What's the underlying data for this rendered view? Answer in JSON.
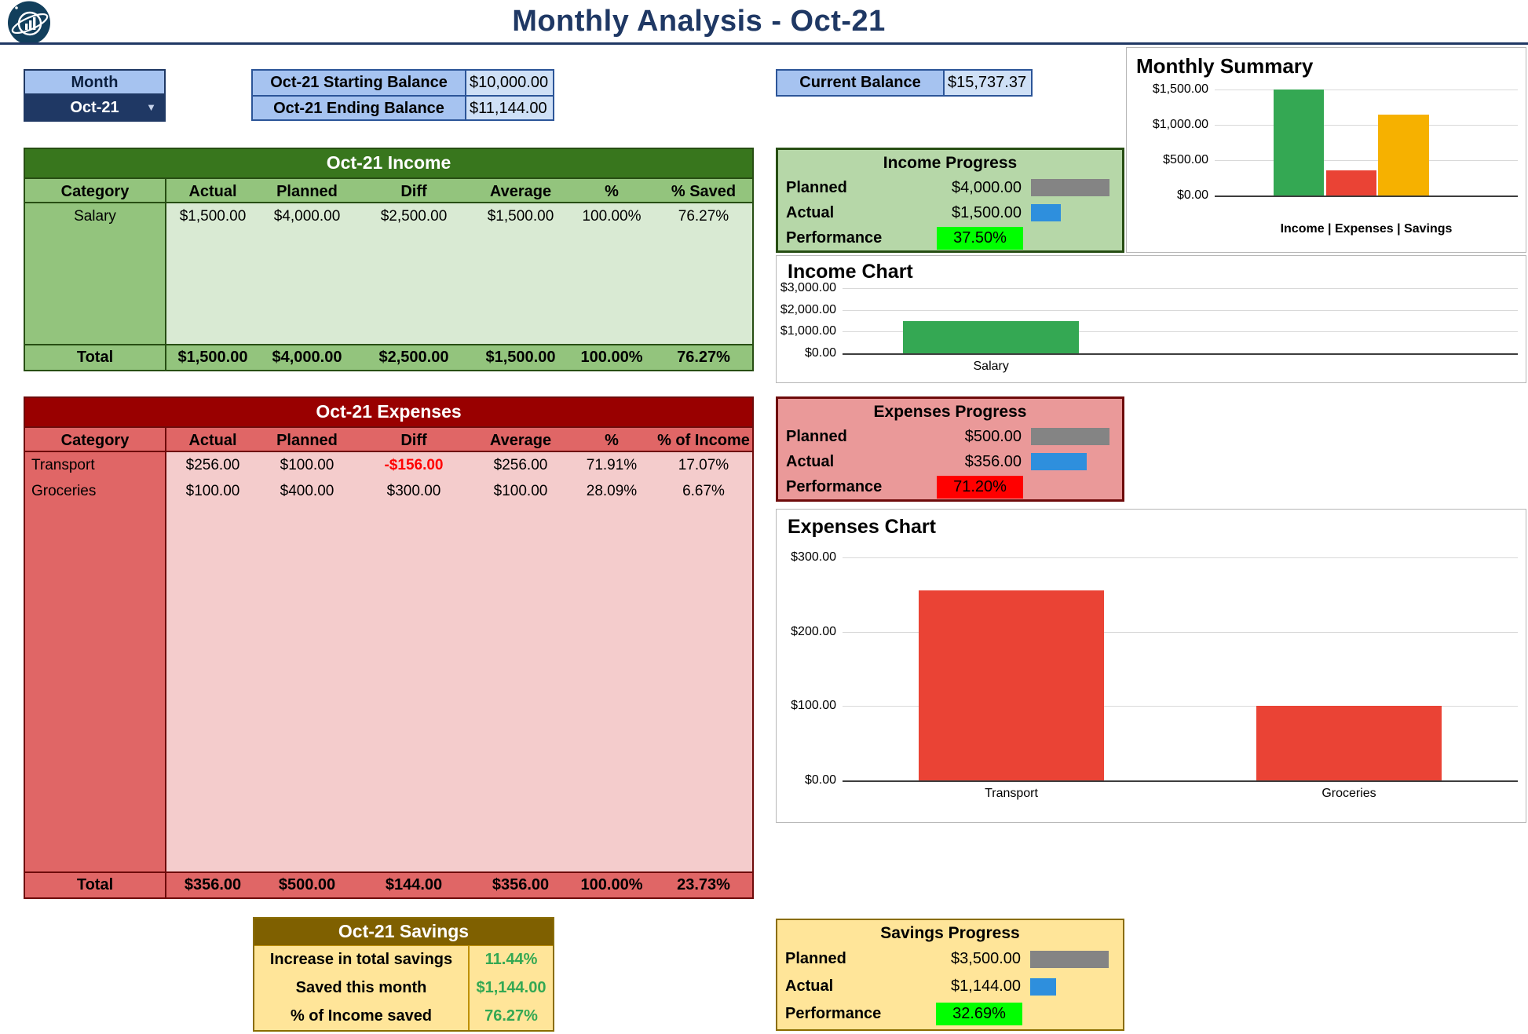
{
  "header": {
    "title": "Monthly Analysis - Oct-21"
  },
  "month_selector": {
    "label": "Month",
    "value": "Oct-21"
  },
  "balances": {
    "starting": {
      "label": "Oct-21 Starting Balance",
      "value": "$10,000.00"
    },
    "ending": {
      "label": "Oct-21 Ending Balance",
      "value": "$11,144.00"
    },
    "current": {
      "label": "Current Balance",
      "value": "$15,737.37"
    }
  },
  "income": {
    "table": {
      "title": "Oct-21 Income",
      "columns": [
        "Category",
        "Actual",
        "Planned",
        "Diff",
        "Average",
        "%",
        "% Saved"
      ],
      "rows": [
        {
          "category": "Salary",
          "values": [
            "$1,500.00",
            "$4,000.00",
            "$2,500.00",
            "$1,500.00",
            "100.00%",
            "76.27%"
          ]
        }
      ],
      "total": {
        "label": "Total",
        "values": [
          "$1,500.00",
          "$4,000.00",
          "$2,500.00",
          "$1,500.00",
          "100.00%",
          "76.27%"
        ]
      }
    },
    "progress": {
      "title": "Income Progress",
      "planned_label": "Planned",
      "planned_value": "$4,000.00",
      "actual_label": "Actual",
      "actual_value": "$1,500.00",
      "performance_label": "Performance",
      "performance_value": "37.50%",
      "performance_color": "#00FF00"
    }
  },
  "expenses": {
    "table": {
      "title": "Oct-21 Expenses",
      "columns": [
        "Category",
        "Actual",
        "Planned",
        "Diff",
        "Average",
        "%",
        "% of Income"
      ],
      "rows": [
        {
          "category": "Transport",
          "values": [
            "$256.00",
            "$100.00",
            "-$156.00",
            "$256.00",
            "71.91%",
            "17.07%"
          ]
        },
        {
          "category": "Groceries",
          "values": [
            "$100.00",
            "$400.00",
            "$300.00",
            "$100.00",
            "28.09%",
            "6.67%"
          ]
        }
      ],
      "total": {
        "label": "Total",
        "values": [
          "$356.00",
          "$500.00",
          "$144.00",
          "$356.00",
          "100.00%",
          "23.73%"
        ]
      }
    },
    "progress": {
      "title": "Expenses Progress",
      "planned_label": "Planned",
      "planned_value": "$500.00",
      "actual_label": "Actual",
      "actual_value": "$356.00",
      "performance_label": "Performance",
      "performance_value": "71.20%",
      "performance_color": "#FF0000"
    }
  },
  "savings": {
    "table": {
      "title": "Oct-21 Savings",
      "rows": [
        {
          "label": "Increase in total savings",
          "value": "11.44%"
        },
        {
          "label": "Saved this month",
          "value": "$1,144.00"
        },
        {
          "label": "% of Income saved",
          "value": "76.27%"
        }
      ]
    },
    "progress": {
      "title": "Savings Progress",
      "planned_label": "Planned",
      "planned_value": "$3,500.00",
      "actual_label": "Actual",
      "actual_value": "$1,144.00",
      "performance_label": "Performance",
      "performance_value": "32.69%",
      "performance_color": "#00FF00"
    }
  },
  "chart_data": [
    {
      "id": "monthly_summary",
      "type": "bar",
      "title": "Monthly Summary",
      "categories": [
        "Income",
        "Expenses",
        "Savings"
      ],
      "values": [
        1500,
        356,
        1144
      ],
      "colors": [
        "#34A853",
        "#EA4335",
        "#F6B100"
      ],
      "yticks": [
        {
          "label": "$1,500.00",
          "value": 1500
        },
        {
          "label": "$1,000.00",
          "value": 1000
        },
        {
          "label": "$500.00",
          "value": 500
        },
        {
          "label": "$0.00",
          "value": 0
        }
      ],
      "ylim": [
        0,
        1500
      ],
      "x_caption": "Income | Expenses | Savings",
      "grid": true,
      "legend": "none"
    },
    {
      "id": "income_chart",
      "type": "bar",
      "title": "Income Chart",
      "categories": [
        "Salary"
      ],
      "values": [
        1500
      ],
      "colors": [
        "#34A853"
      ],
      "yticks": [
        {
          "label": "$3,000.00",
          "value": 3000
        },
        {
          "label": "$2,000.00",
          "value": 2000
        },
        {
          "label": "$1,000.00",
          "value": 1000
        },
        {
          "label": "$0.00",
          "value": 0
        }
      ],
      "ylim": [
        0,
        3000
      ],
      "grid": true,
      "legend": "none"
    },
    {
      "id": "expenses_chart",
      "type": "bar",
      "title": "Expenses Chart",
      "categories": [
        "Transport",
        "Groceries"
      ],
      "values": [
        256,
        100
      ],
      "colors": [
        "#EA4335",
        "#EA4335"
      ],
      "yticks": [
        {
          "label": "$300.00",
          "value": 300
        },
        {
          "label": "$200.00",
          "value": 200
        },
        {
          "label": "$100.00",
          "value": 100
        },
        {
          "label": "$0.00",
          "value": 0
        }
      ],
      "ylim": [
        0,
        300
      ],
      "grid": true,
      "legend": "none"
    }
  ],
  "colors": {
    "accent_navy": "#1F3864",
    "blue_cell": "#A6C3F0",
    "blue_cell_light": "#CFE0F6",
    "blue_border": "#2C5598",
    "income_dark": "#38761D",
    "income_mid": "#93C47D",
    "income_light": "#D9EAD3",
    "income_panel": "#B6D7A8",
    "income_border": "#274E13",
    "expense_dark": "#990000",
    "expense_mid": "#E06666",
    "expense_light": "#F4CCCC",
    "expense_panel": "#EA9999",
    "expense_border": "#6E0B0B",
    "savings_dark": "#7F6000",
    "savings_light": "#FFE599",
    "savings_border": "#BF9000",
    "savings_border_dark": "#8A6D00",
    "progress_planned_bar": "#848484",
    "progress_actual_bar": "#2E8FDD",
    "text_green": "#34A853",
    "alert_red": "#FF0000"
  }
}
